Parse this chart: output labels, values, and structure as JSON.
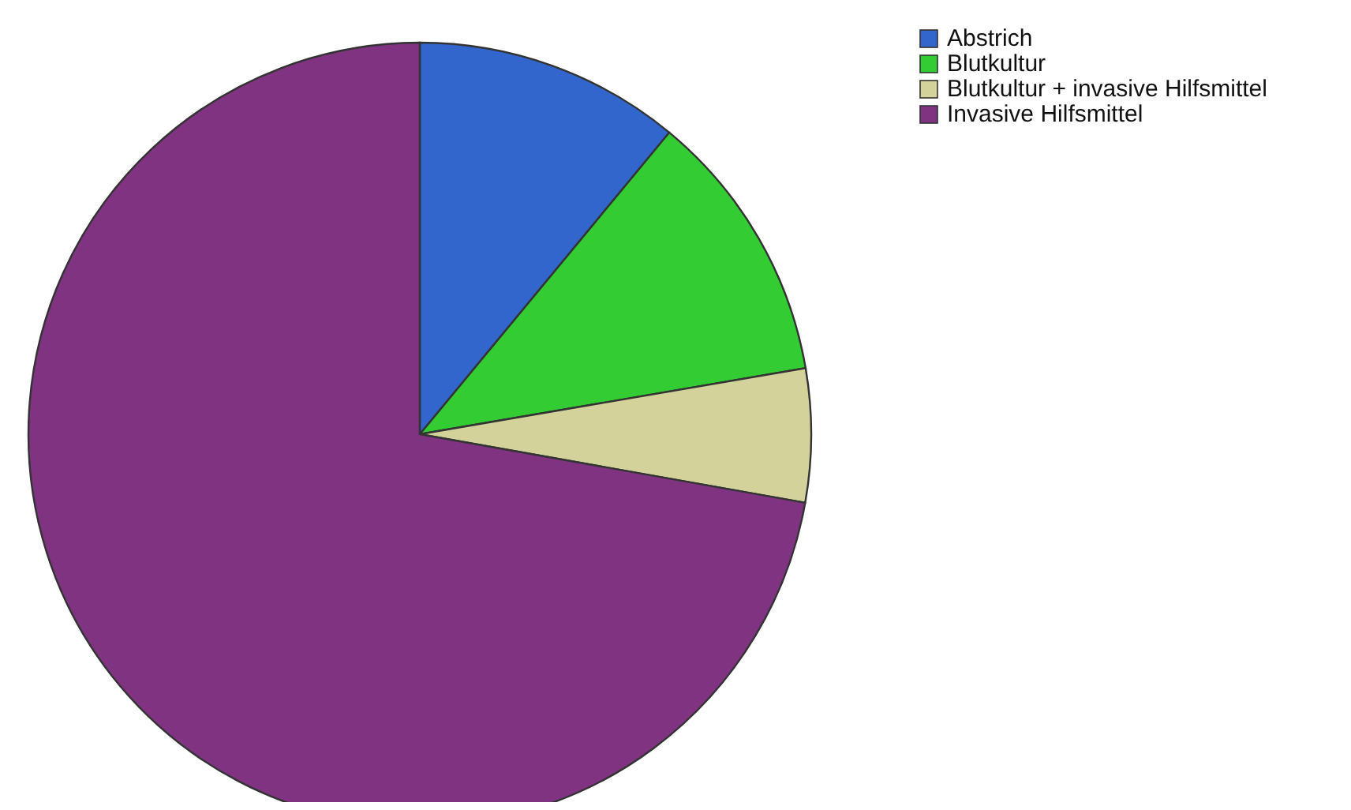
{
  "chart_data": {
    "type": "pie",
    "categories": [
      "Abstrich",
      "Blutkultur",
      "Blutkultur + invasive Hilfsmittel",
      "Invasive Hilfsmittel"
    ],
    "values": [
      11,
      11.3,
      5.5,
      72.2
    ],
    "colors": [
      "#3366cc",
      "#33cc33",
      "#d2d29a",
      "#7f3380"
    ],
    "legend": "top right"
  }
}
